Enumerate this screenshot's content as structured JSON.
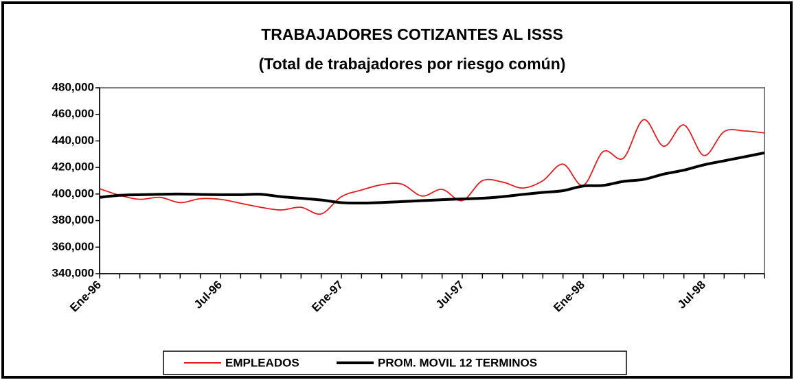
{
  "chart_data": {
    "type": "line",
    "title": "TRABAJADORES COTIZANTES AL ISSS",
    "subtitle": "(Total de trabajadores por riesgo común)",
    "categories": [
      "Ene-96",
      null,
      null,
      null,
      null,
      null,
      "Jul-96",
      null,
      null,
      null,
      null,
      null,
      "Ene-97",
      null,
      null,
      null,
      null,
      null,
      "Jul-97",
      null,
      null,
      null,
      null,
      null,
      "Ene-98",
      null,
      null,
      null,
      null,
      null,
      "Jul-98",
      null,
      null,
      null
    ],
    "series": [
      {
        "name": "EMPLEADOS",
        "color": "#e41a1c",
        "values": [
          404000,
          399000,
          396000,
          397500,
          393500,
          396500,
          396000,
          393000,
          390000,
          388000,
          390000,
          385000,
          398000,
          403000,
          407000,
          407500,
          398500,
          403500,
          395000,
          410000,
          409000,
          404500,
          410000,
          422500,
          406500,
          432000,
          427000,
          456000,
          436000,
          452000,
          429000,
          447000,
          447500,
          446000
        ]
      },
      {
        "name": "PROM. MOVIL 12 TERMINOS",
        "color": "#000000",
        "values": [
          397500,
          399000,
          399500,
          399800,
          400000,
          399700,
          399500,
          399500,
          399800,
          398000,
          396800,
          395500,
          393500,
          393200,
          393600,
          394300,
          395000,
          395700,
          396300,
          396800,
          398000,
          399700,
          401200,
          402500,
          406000,
          406500,
          409500,
          411000,
          415000,
          418000,
          422000,
          425000,
          428000,
          431000
        ]
      }
    ],
    "ylim": [
      340000,
      480000
    ],
    "yticks": [
      {
        "value": 340000,
        "label": "340,000"
      },
      {
        "value": 360000,
        "label": "360,000"
      },
      {
        "value": 380000,
        "label": "380,000"
      },
      {
        "value": 400000,
        "label": "400,000"
      },
      {
        "value": 420000,
        "label": "420,000"
      },
      {
        "value": 440000,
        "label": "440,000"
      },
      {
        "value": 460000,
        "label": "460,000"
      },
      {
        "value": 480000,
        "label": "480,000"
      }
    ],
    "legend": "bottom"
  }
}
